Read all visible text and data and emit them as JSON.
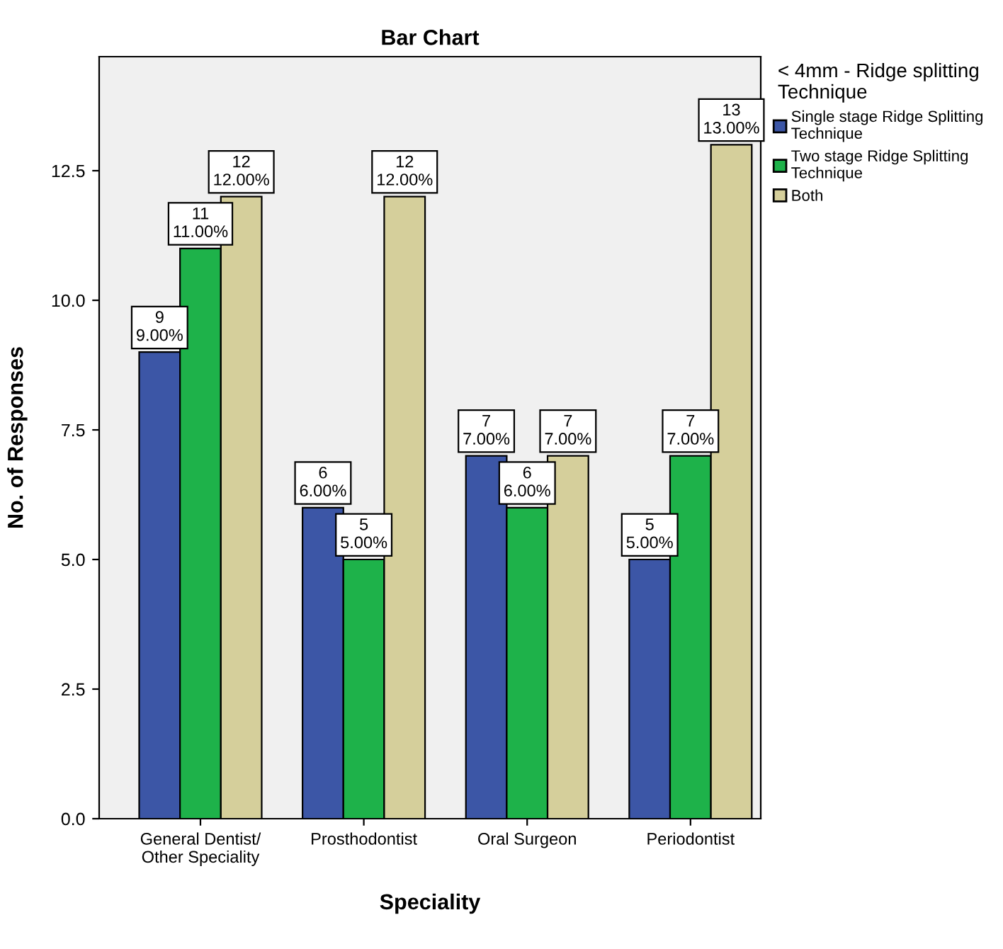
{
  "chart_data": {
    "type": "bar",
    "title": "Bar Chart",
    "xlabel": "Speciality",
    "ylabel": "No. of Responses",
    "legend_title": "< 4mm - Ridge splitting\nTechnique",
    "legend": "right",
    "grid": false,
    "categories": [
      "General Dentist/\nOther Speciality",
      "Prosthodontist",
      "Oral Surgeon",
      "Periodontist"
    ],
    "series": [
      {
        "name": "Single stage Ridge Splitting\nTechnique",
        "color": "#3c56a6",
        "values": [
          9,
          6,
          7,
          5
        ],
        "value_labels": [
          "9\n9.00%",
          "6\n6.00%",
          "7\n7.00%",
          "5\n5.00%"
        ]
      },
      {
        "name": "Two stage Ridge Splitting\nTechnique",
        "color": "#1eb24a",
        "values": [
          11,
          5,
          6,
          7
        ],
        "value_labels": [
          "11\n11.00%",
          "5\n5.00%",
          "6\n6.00%",
          "7\n7.00%"
        ]
      },
      {
        "name": "Both",
        "color": "#d5cf9b",
        "values": [
          12,
          12,
          7,
          13
        ],
        "value_labels": [
          "12\n12.00%",
          "12\n12.00%",
          "7\n7.00%",
          "13\n13.00%"
        ]
      }
    ],
    "ylim": [
      0,
      14.7
    ],
    "yticks": [
      {
        "value": 0,
        "label": "0.0"
      },
      {
        "value": 2.5,
        "label": "2.5"
      },
      {
        "value": 5,
        "label": "5.0"
      },
      {
        "value": 7.5,
        "label": "7.5"
      },
      {
        "value": 10,
        "label": "10.0"
      },
      {
        "value": 12.5,
        "label": "12.5"
      }
    ]
  }
}
